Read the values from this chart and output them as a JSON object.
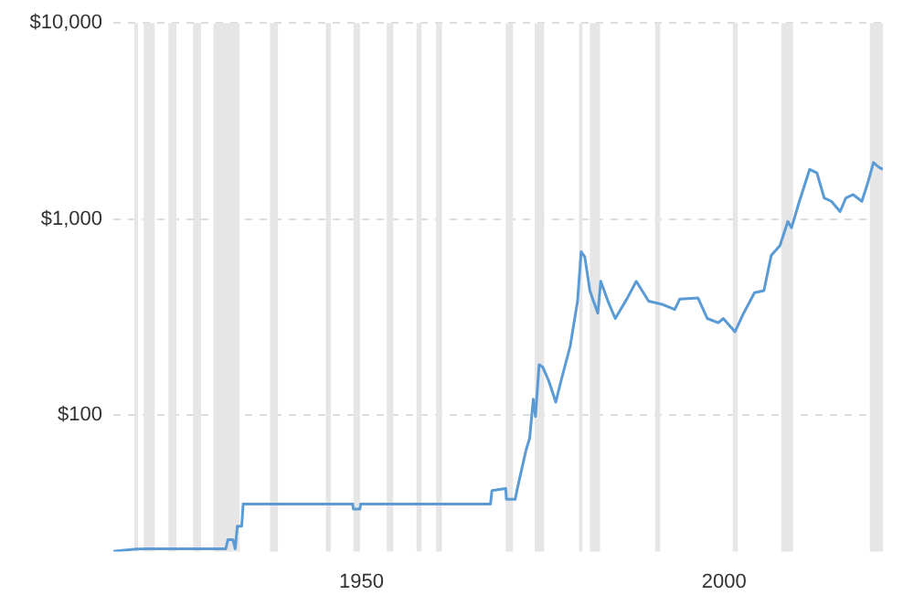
{
  "chart_data": {
    "type": "line",
    "x": [
      1915.8,
      1917,
      1919,
      1920.3,
      1931.3,
      1931.6,
      1932.3,
      1932.6,
      1932.9,
      1933.5,
      1933.7,
      1948.8,
      1948.9,
      1949.8,
      1949.9,
      1967.8,
      1968,
      1969.9,
      1970,
      1971.2,
      1971.5,
      1972.7,
      1973.2,
      1973.7,
      1974,
      1974.5,
      1975,
      1975.8,
      1976.8,
      1977.5,
      1978.8,
      1979.8,
      1980.3,
      1980.8,
      1981.5,
      1982,
      1982.6,
      1983,
      1984,
      1985,
      1986.6,
      1987.9,
      1989.6,
      1991.6,
      1993.2,
      1993.9,
      1996.4,
      1997.7,
      1999.2,
      1999.9,
      2001.5,
      2002.7,
      2004.2,
      2005.5,
      2006.5,
      2007.7,
      2008.8,
      2009.3,
      2010.3,
      2011.8,
      2012.8,
      2013.8,
      2014.8,
      2016,
      2016.8,
      2017.8,
      2019,
      2019.8,
      2020.6,
      2021.3,
      2021.9
    ],
    "series": [
      {
        "color": "#5b9bd5",
        "values": [
          20.1,
          20.3,
          20.6,
          20.7,
          20.7,
          23,
          23,
          20.7,
          27,
          27,
          35,
          35,
          33,
          33,
          35,
          35,
          41,
          42,
          37,
          37,
          42,
          66,
          76,
          120,
          98,
          180,
          175,
          150,
          116,
          148,
          225,
          380,
          680,
          640,
          430,
          380,
          330,
          480,
          380,
          310,
          390,
          480,
          380,
          365,
          345,
          390,
          395,
          310,
          295,
          310,
          265,
          330,
          420,
          430,
          650,
          730,
          970,
          900,
          1200,
          1790,
          1720,
          1280,
          1230,
          1090,
          1280,
          1330,
          1230,
          1520,
          1940,
          1840,
          1790
        ]
      }
    ],
    "xlim": [
      1915.8,
      2021.9
    ],
    "xticks": [
      1950,
      2000
    ],
    "ylim": [
      20,
      10000
    ],
    "yticks": [
      {
        "value": 100,
        "label": "$100"
      },
      {
        "value": 1000,
        "label": "$1,000"
      },
      {
        "value": 10000,
        "label": "$10,000"
      }
    ],
    "log": "y",
    "grid": "y",
    "legend": false,
    "marker": "none",
    "line_style": "solid",
    "bands": [
      {
        "axis": "x",
        "from": 1918.7,
        "to": 1919.2,
        "color": "#e6e6e6"
      },
      {
        "axis": "x",
        "from": 1920.0,
        "to": 1921.5,
        "color": "#e6e6e6"
      },
      {
        "axis": "x",
        "from": 1923.4,
        "to": 1924.5,
        "color": "#e6e6e6"
      },
      {
        "axis": "x",
        "from": 1926.8,
        "to": 1927.9,
        "color": "#e6e6e6"
      },
      {
        "axis": "x",
        "from": 1929.6,
        "to": 1933.2,
        "color": "#e6e6e6"
      },
      {
        "axis": "x",
        "from": 1937.4,
        "to": 1938.5,
        "color": "#e6e6e6"
      },
      {
        "axis": "x",
        "from": 1945.1,
        "to": 1945.8,
        "color": "#e6e6e6"
      },
      {
        "axis": "x",
        "from": 1948.9,
        "to": 1949.8,
        "color": "#e6e6e6"
      },
      {
        "axis": "x",
        "from": 1953.5,
        "to": 1954.4,
        "color": "#e6e6e6"
      },
      {
        "axis": "x",
        "from": 1957.6,
        "to": 1958.3,
        "color": "#e6e6e6"
      },
      {
        "axis": "x",
        "from": 1960.3,
        "to": 1961.1,
        "color": "#e6e6e6"
      },
      {
        "axis": "x",
        "from": 1969.9,
        "to": 1970.9,
        "color": "#e6e6e6"
      },
      {
        "axis": "x",
        "from": 1973.9,
        "to": 1975.2,
        "color": "#e6e6e6"
      },
      {
        "axis": "x",
        "from": 1980.0,
        "to": 1980.5,
        "color": "#e6e6e6"
      },
      {
        "axis": "x",
        "from": 1981.5,
        "to": 1982.9,
        "color": "#e6e6e6"
      },
      {
        "axis": "x",
        "from": 1990.5,
        "to": 1991.2,
        "color": "#e6e6e6"
      },
      {
        "axis": "x",
        "from": 2001.2,
        "to": 2001.9,
        "color": "#e6e6e6"
      },
      {
        "axis": "x",
        "from": 2007.9,
        "to": 2009.5,
        "color": "#e6e6e6"
      },
      {
        "axis": "x",
        "from": 2020.1,
        "to": 2021.9,
        "color": "#e6e6e6"
      }
    ]
  }
}
